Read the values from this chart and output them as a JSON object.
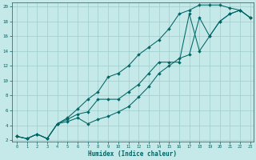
{
  "xlabel": "Humidex (Indice chaleur)",
  "bg_color": "#c5e8e8",
  "grid_color": "#9ecece",
  "line_color": "#006666",
  "xlim": [
    0,
    23
  ],
  "ylim": [
    2,
    20
  ],
  "xticks": [
    0,
    1,
    2,
    3,
    4,
    5,
    6,
    7,
    8,
    9,
    10,
    11,
    12,
    13,
    14,
    15,
    16,
    17,
    18,
    19,
    20,
    21,
    22,
    23
  ],
  "yticks": [
    2,
    4,
    6,
    8,
    10,
    12,
    14,
    16,
    18,
    20
  ],
  "series": [
    {
      "x": [
        0,
        1,
        2,
        3,
        4,
        5,
        6,
        7,
        8,
        9,
        10,
        11,
        12,
        13,
        14,
        15,
        16,
        17,
        18,
        19,
        20,
        21,
        22,
        23
      ],
      "y": [
        2.5,
        2.2,
        2.8,
        2.2,
        4.2,
        5.0,
        6.2,
        7.5,
        8.5,
        10.5,
        11.0,
        12.0,
        13.5,
        14.5,
        15.5,
        17.0,
        19.0,
        19.5,
        20.2,
        20.2,
        20.2,
        19.8,
        19.5,
        18.5
      ]
    },
    {
      "x": [
        0,
        1,
        2,
        3,
        4,
        5,
        6,
        7,
        8,
        9,
        10,
        11,
        12,
        13,
        14,
        15,
        16,
        17,
        18,
        19,
        20,
        21,
        22,
        23
      ],
      "y": [
        2.5,
        2.2,
        2.8,
        2.2,
        4.2,
        4.8,
        5.5,
        5.8,
        7.5,
        7.5,
        7.5,
        8.5,
        9.5,
        11.0,
        12.5,
        12.5,
        12.5,
        19.0,
        14.0,
        16.0,
        18.0,
        19.0,
        19.5,
        18.5
      ]
    },
    {
      "x": [
        0,
        1,
        2,
        3,
        4,
        5,
        6,
        7,
        8,
        9,
        10,
        11,
        12,
        13,
        14,
        15,
        16,
        17,
        18,
        19,
        20,
        21,
        22,
        23
      ],
      "y": [
        2.5,
        2.2,
        2.8,
        2.2,
        4.2,
        4.5,
        5.0,
        4.2,
        4.8,
        5.2,
        5.8,
        6.5,
        7.8,
        9.2,
        11.0,
        12.0,
        13.0,
        13.5,
        18.5,
        16.0,
        18.0,
        19.0,
        19.5,
        18.5
      ]
    }
  ]
}
